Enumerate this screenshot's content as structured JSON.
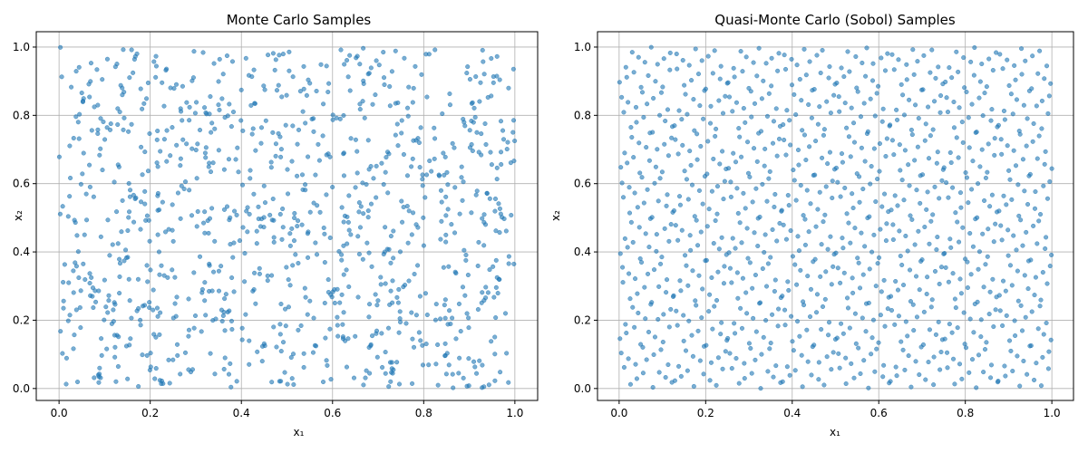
{
  "chart_data": [
    {
      "type": "scatter",
      "title": "Monte Carlo Samples",
      "xlabel": "x₁",
      "ylabel": "x₂",
      "xlim": [
        -0.05,
        1.05
      ],
      "ylim": [
        -0.035,
        1.045
      ],
      "xticks": [
        "0.0",
        "0.2",
        "0.4",
        "0.6",
        "0.8",
        "1.0"
      ],
      "yticks": [
        "0.0",
        "0.2",
        "0.4",
        "0.6",
        "0.8",
        "1.0"
      ],
      "grid": true,
      "marker_color": "#1f77b4",
      "marker_alpha": 0.6,
      "sampling": "pseudo-random uniform",
      "n_points": 1024,
      "seed": 20240917
    },
    {
      "type": "scatter",
      "title": "Quasi-Monte Carlo (Sobol) Samples",
      "xlabel": "x₁",
      "ylabel": "x₂",
      "xlim": [
        -0.05,
        1.05
      ],
      "ylim": [
        -0.035,
        1.045
      ],
      "xticks": [
        "0.0",
        "0.2",
        "0.4",
        "0.6",
        "0.8",
        "1.0"
      ],
      "yticks": [
        "0.0",
        "0.2",
        "0.4",
        "0.6",
        "0.8",
        "1.0"
      ],
      "grid": true,
      "marker_color": "#1f77b4",
      "marker_alpha": 0.6,
      "sampling": "sobol low-discrepancy",
      "n_points": 1024,
      "seed": 7
    }
  ]
}
